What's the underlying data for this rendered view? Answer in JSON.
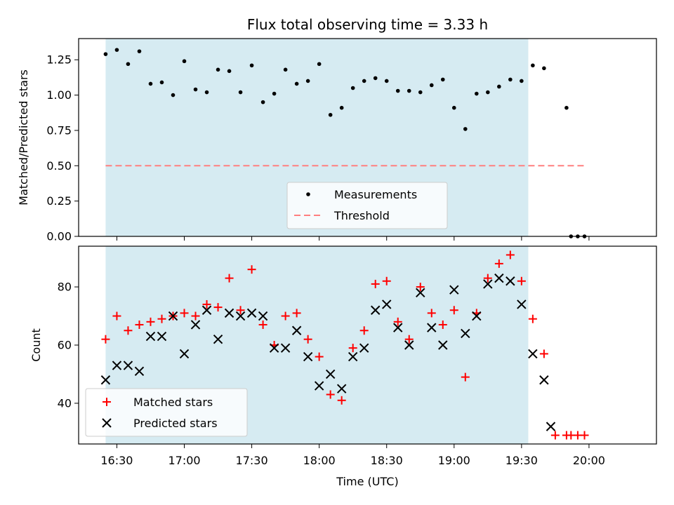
{
  "chart_data": [
    {
      "type": "scatter",
      "title": "Flux total observing time = 3.33 h",
      "xlabel": "",
      "ylabel": "Matched/Predicted stars",
      "ylim": [
        0,
        1.4
      ],
      "yticks": [
        0,
        0.25,
        0.5,
        0.75,
        1.0,
        1.25
      ],
      "ytick_labels": [
        "0.00",
        "0.25",
        "0.50",
        "0.75",
        "1.00",
        "1.25"
      ],
      "xlim_minutes": [
        973,
        1230
      ],
      "shaded_interval_minutes": [
        985,
        1173
      ],
      "threshold": {
        "value": 0.5,
        "x_range_minutes": [
          985,
          1198
        ],
        "color": "#ff7f7f"
      },
      "legend": {
        "placement": "lower-center",
        "entries": [
          "Measurements",
          "Threshold"
        ]
      },
      "series": [
        {
          "name": "Measurements",
          "marker": "dot",
          "color": "#000000",
          "x_minutes": [
            985,
            990,
            995,
            1000,
            1005,
            1010,
            1015,
            1020,
            1025,
            1030,
            1035,
            1040,
            1045,
            1050,
            1055,
            1060,
            1065,
            1070,
            1075,
            1080,
            1085,
            1090,
            1095,
            1100,
            1105,
            1110,
            1115,
            1120,
            1125,
            1130,
            1135,
            1140,
            1145,
            1150,
            1155,
            1160,
            1165,
            1170,
            1175,
            1180,
            1190,
            1192,
            1195,
            1198
          ],
          "y": [
            1.29,
            1.32,
            1.22,
            1.31,
            1.08,
            1.09,
            1.0,
            1.24,
            1.04,
            1.02,
            1.18,
            1.17,
            1.02,
            1.21,
            0.95,
            1.01,
            1.18,
            1.08,
            1.1,
            1.22,
            0.86,
            0.91,
            1.05,
            1.1,
            1.12,
            1.1,
            1.03,
            1.03,
            1.02,
            1.07,
            1.11,
            0.91,
            0.76,
            1.01,
            1.02,
            1.06,
            1.11,
            1.1,
            1.21,
            1.19,
            0.91,
            0.0,
            0.0,
            0.0
          ]
        }
      ]
    },
    {
      "type": "scatter",
      "title": "",
      "xlabel": "Time (UTC)",
      "ylabel": "Count",
      "ylim": [
        26,
        94
      ],
      "yticks": [
        40,
        60,
        80
      ],
      "ytick_labels": [
        "40",
        "60",
        "80"
      ],
      "xlim_minutes": [
        973,
        1230
      ],
      "xticks_minutes": [
        990,
        1020,
        1050,
        1080,
        1110,
        1140,
        1170,
        1200
      ],
      "xtick_labels": [
        "16:30",
        "17:00",
        "17:30",
        "18:00",
        "18:30",
        "19:00",
        "19:30",
        "20:00"
      ],
      "shaded_interval_minutes": [
        985,
        1173
      ],
      "legend": {
        "placement": "lower-left",
        "entries": [
          "Matched stars",
          "Predicted stars"
        ]
      },
      "series": [
        {
          "name": "Matched stars",
          "marker": "plus",
          "color": "#ff0000",
          "x_minutes": [
            985,
            990,
            995,
            1000,
            1005,
            1010,
            1015,
            1020,
            1025,
            1030,
            1035,
            1040,
            1045,
            1050,
            1055,
            1060,
            1065,
            1070,
            1075,
            1080,
            1085,
            1090,
            1095,
            1100,
            1105,
            1110,
            1115,
            1120,
            1125,
            1130,
            1135,
            1140,
            1145,
            1150,
            1155,
            1160,
            1165,
            1170,
            1175,
            1180,
            1185,
            1190,
            1192,
            1195,
            1198
          ],
          "y": [
            62,
            70,
            65,
            67,
            68,
            69,
            70,
            71,
            70,
            74,
            73,
            83,
            72,
            86,
            67,
            60,
            70,
            71,
            62,
            56,
            43,
            41,
            59,
            65,
            81,
            82,
            68,
            62,
            80,
            71,
            67,
            72,
            49,
            71,
            83,
            88,
            91,
            82,
            69,
            57,
            29,
            29,
            29,
            29,
            29
          ]
        },
        {
          "name": "Predicted stars",
          "marker": "x",
          "color": "#000000",
          "x_minutes": [
            985,
            990,
            995,
            1000,
            1005,
            1010,
            1015,
            1020,
            1025,
            1030,
            1035,
            1040,
            1045,
            1050,
            1055,
            1060,
            1065,
            1070,
            1075,
            1080,
            1085,
            1090,
            1095,
            1100,
            1105,
            1110,
            1115,
            1120,
            1125,
            1130,
            1135,
            1140,
            1145,
            1150,
            1155,
            1160,
            1165,
            1170,
            1175,
            1180,
            1183
          ],
          "y": [
            48,
            53,
            53,
            51,
            63,
            63,
            70,
            57,
            67,
            72,
            62,
            71,
            70,
            71,
            70,
            59,
            59,
            65,
            56,
            46,
            50,
            45,
            56,
            59,
            72,
            74,
            66,
            60,
            78,
            66,
            60,
            79,
            64,
            70,
            81,
            83,
            82,
            74,
            57,
            48,
            32
          ]
        }
      ]
    }
  ],
  "colors": {
    "shade": "#add8e6",
    "threshold": "#ff7f7f",
    "matched": "#ff0000",
    "predicted": "#000000",
    "measurement": "#000000"
  }
}
